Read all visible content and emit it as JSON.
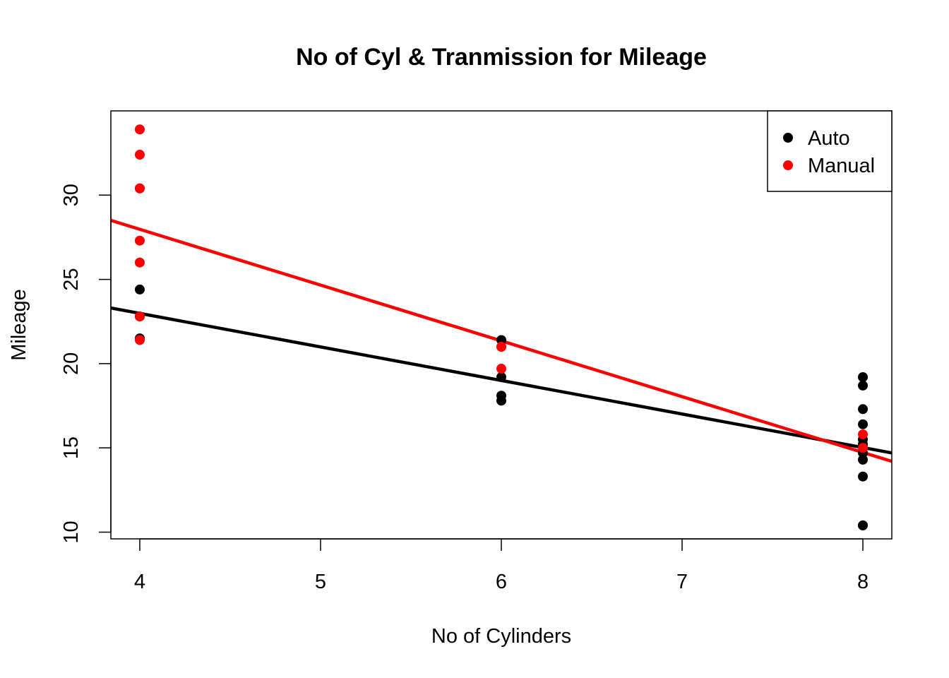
{
  "chart_data": {
    "type": "scatter",
    "title": "No of Cyl & Tranmission for Mileage",
    "xlabel": "No of Cylinders",
    "ylabel": "Mileage",
    "xlim": [
      3.84,
      8.16
    ],
    "ylim": [
      9.6,
      35.0
    ],
    "x_ticks": [
      4,
      5,
      6,
      7,
      8
    ],
    "y_ticks": [
      10,
      15,
      20,
      25,
      30
    ],
    "grid": false,
    "legend_position": "top-right",
    "series": [
      {
        "name": "Auto",
        "color": "#000000",
        "points": [
          {
            "x": 4,
            "y": 24.4
          },
          {
            "x": 4,
            "y": 22.8
          },
          {
            "x": 4,
            "y": 21.5
          },
          {
            "x": 6,
            "y": 21.4
          },
          {
            "x": 6,
            "y": 19.2
          },
          {
            "x": 6,
            "y": 18.1
          },
          {
            "x": 6,
            "y": 17.8
          },
          {
            "x": 8,
            "y": 19.2
          },
          {
            "x": 8,
            "y": 18.7
          },
          {
            "x": 8,
            "y": 17.3
          },
          {
            "x": 8,
            "y": 16.4
          },
          {
            "x": 8,
            "y": 15.5
          },
          {
            "x": 8,
            "y": 15.2
          },
          {
            "x": 8,
            "y": 15.2
          },
          {
            "x": 8,
            "y": 14.7
          },
          {
            "x": 8,
            "y": 14.3
          },
          {
            "x": 8,
            "y": 13.3
          },
          {
            "x": 8,
            "y": 10.4
          },
          {
            "x": 8,
            "y": 10.4
          }
        ],
        "trendline": {
          "x": [
            3.84,
            8.16
          ],
          "y": [
            23.3,
            14.7
          ]
        }
      },
      {
        "name": "Manual",
        "color": "#ff0000",
        "points": [
          {
            "x": 4,
            "y": 33.9
          },
          {
            "x": 4,
            "y": 32.4
          },
          {
            "x": 4,
            "y": 30.4
          },
          {
            "x": 4,
            "y": 30.4
          },
          {
            "x": 4,
            "y": 27.3
          },
          {
            "x": 4,
            "y": 26.0
          },
          {
            "x": 4,
            "y": 22.8
          },
          {
            "x": 4,
            "y": 21.4
          },
          {
            "x": 6,
            "y": 21.0
          },
          {
            "x": 6,
            "y": 21.0
          },
          {
            "x": 6,
            "y": 19.7
          },
          {
            "x": 8,
            "y": 15.8
          },
          {
            "x": 8,
            "y": 15.0
          }
        ],
        "trendline": {
          "x": [
            3.84,
            8.16
          ],
          "y": [
            28.5,
            14.2
          ]
        }
      }
    ]
  }
}
